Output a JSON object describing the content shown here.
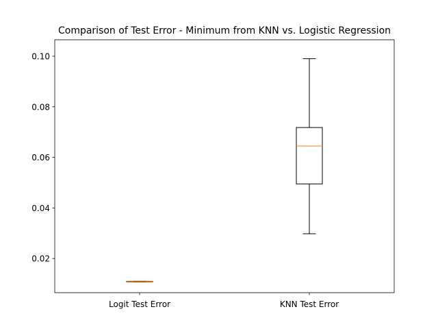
{
  "chart_data": {
    "type": "box",
    "title": "Comparison of Test Error - Minimum from KNN vs. Logistic Regression",
    "xlabel": "",
    "ylabel": "",
    "ylim": [
      0.0065,
      0.1065
    ],
    "yticks": [
      0.02,
      0.04,
      0.06,
      0.08,
      0.1
    ],
    "ytick_labels": [
      "0.02",
      "0.04",
      "0.06",
      "0.08",
      "0.10"
    ],
    "categories": [
      "Logit Test Error",
      "KNN Test Error"
    ],
    "boxes": [
      {
        "whisker_low": 0.0108,
        "q1": 0.0108,
        "median": 0.0109,
        "q3": 0.011,
        "whisker_high": 0.011
      },
      {
        "whisker_low": 0.0298,
        "q1": 0.0495,
        "median": 0.0645,
        "q3": 0.0718,
        "whisker_high": 0.099
      }
    ],
    "grid": false,
    "colors": {
      "box": "#000000",
      "median": "#ff7f0e"
    }
  }
}
